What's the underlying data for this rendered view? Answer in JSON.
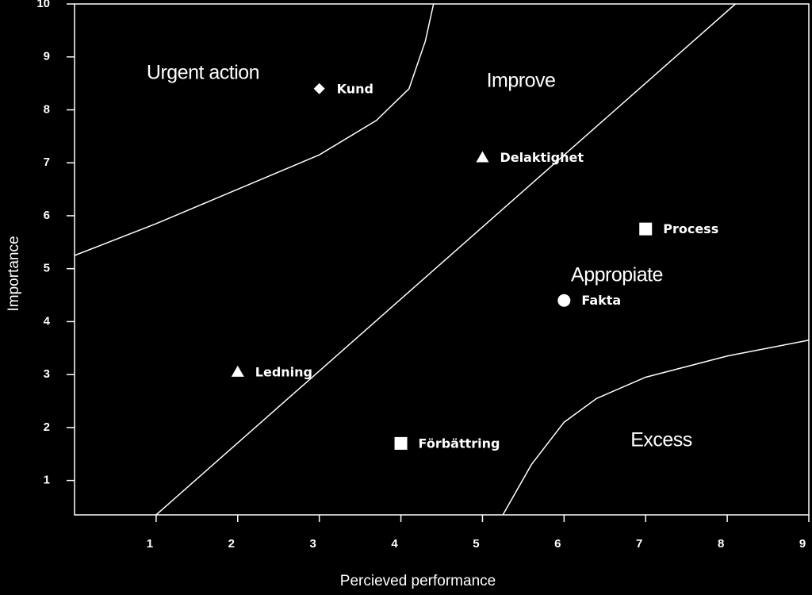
{
  "chart_data": {
    "type": "scatter",
    "xlabel": "Percieved performance",
    "ylabel": "Importance",
    "xlim": [
      0,
      9
    ],
    "ylim": [
      0.35,
      10
    ],
    "xticks": [
      1,
      2,
      3,
      4,
      5,
      6,
      7,
      8,
      9
    ],
    "yticks": [
      1,
      2,
      3,
      4,
      5,
      6,
      7,
      8,
      9,
      10
    ],
    "color": "#ffffff",
    "series": [
      {
        "name": "Kund",
        "marker": "diamond",
        "x": [
          3
        ],
        "values": [
          8.4
        ]
      },
      {
        "name": "Delaktighet",
        "marker": "triangle",
        "x": [
          5
        ],
        "values": [
          7.1
        ]
      },
      {
        "name": "Process",
        "marker": "square",
        "x": [
          7
        ],
        "values": [
          5.75
        ]
      },
      {
        "name": "Fakta",
        "marker": "circle",
        "x": [
          6
        ],
        "values": [
          4.4
        ]
      },
      {
        "name": "Ledning",
        "marker": "triangle",
        "x": [
          2
        ],
        "values": [
          3.05
        ]
      },
      {
        "name": "Förbättring",
        "marker": "square",
        "x": [
          4
        ],
        "values": [
          1.7
        ]
      }
    ],
    "lines": [
      {
        "x": [
          0,
          1,
          2,
          3,
          3.7,
          4.1,
          4.3,
          4.4
        ],
        "values": [
          5.25,
          5.85,
          6.5,
          7.15,
          7.8,
          8.4,
          9.3,
          10
        ]
      },
      {
        "x": [
          1,
          8.1
        ],
        "values": [
          0.35,
          10
        ]
      },
      {
        "x": [
          5.25,
          5.6,
          6,
          6.4,
          7,
          8,
          9
        ],
        "values": [
          0.35,
          1.3,
          2.1,
          2.55,
          2.95,
          3.35,
          3.65
        ]
      }
    ],
    "annotations": [
      "Urgent action",
      "Improve",
      "Appropiate",
      "Excess"
    ]
  }
}
